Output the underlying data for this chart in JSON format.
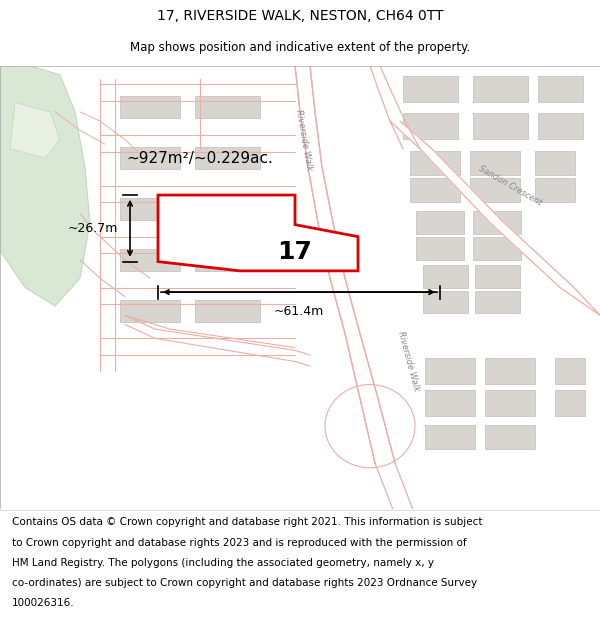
{
  "title": "17, RIVERSIDE WALK, NESTON, CH64 0TT",
  "subtitle": "Map shows position and indicative extent of the property.",
  "footer_line1": "Contains OS data © Crown copyright and database right 2021. This information is subject",
  "footer_line2": "to Crown copyright and database rights 2023 and is reproduced with the permission of",
  "footer_line3": "HM Land Registry. The polygons (including the associated geometry, namely x, y",
  "footer_line4": "co-ordinates) are subject to Crown copyright and database rights 2023 Ordnance Survey",
  "footer_line5": "100026316.",
  "area_label": "~927m²/~0.229ac.",
  "property_label": "17",
  "dim_width": "~61.4m",
  "dim_height": "~26.7m",
  "map_bg": "#ffffff",
  "property_fill": "#ffffff",
  "property_edge": "#dd0000",
  "road_line_color": "#e8b0a8",
  "green_fill": "#d8e8d4",
  "green_edge": "#c0d4bc",
  "building_fill": "#d8d4d0",
  "building_edge": "#c0bcb8",
  "road_label_color": "#888888",
  "title_fontsize": 10,
  "subtitle_fontsize": 8.5,
  "footer_fontsize": 7.5,
  "area_fontsize": 11,
  "prop_label_fontsize": 18,
  "dim_fontsize": 9
}
